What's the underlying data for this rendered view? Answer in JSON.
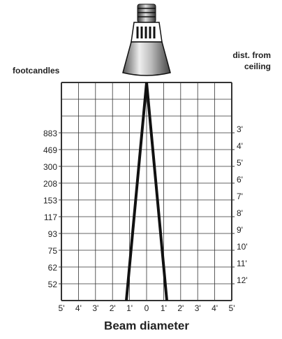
{
  "left_heading": "footcandles",
  "right_heading": [
    "dist. from",
    "ceiling"
  ],
  "footcandles": [
    883,
    469,
    300,
    208,
    153,
    117,
    93,
    75,
    62,
    52
  ],
  "distances": [
    "3'",
    "4'",
    "5'",
    "6'",
    "7'",
    "8'",
    "9'",
    "10'",
    "11'",
    "12'"
  ],
  "beam_ticks": [
    "5'",
    "4'",
    "3'",
    "2'",
    "1'",
    "0",
    "1'",
    "2'",
    "3'",
    "4'",
    "5'"
  ],
  "x_title": "Beam diameter"
}
